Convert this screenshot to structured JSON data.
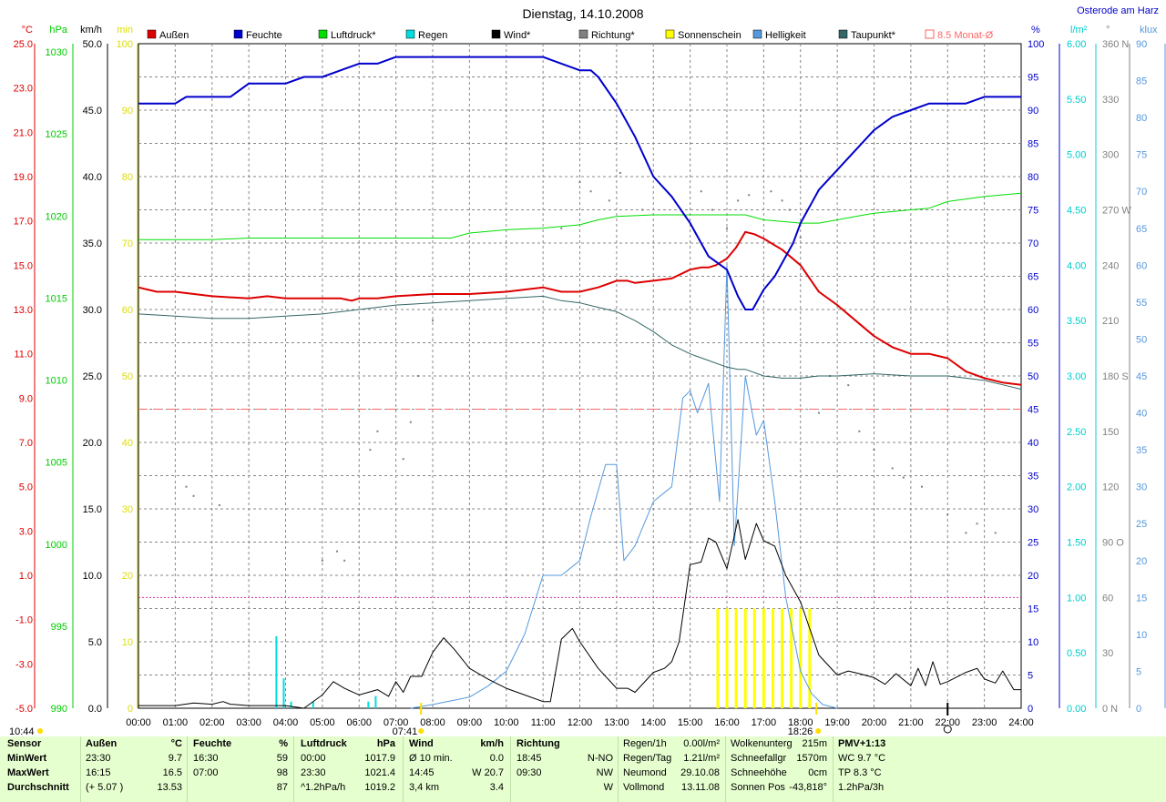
{
  "title": "Dienstag, 14.10.2008",
  "location": "Osterode am Harz",
  "legend": [
    {
      "label": "Außen",
      "color": "#dd0000",
      "style": "filled"
    },
    {
      "label": "Feuchte",
      "color": "#0000cc",
      "style": "filled"
    },
    {
      "label": "Luftdruck*",
      "color": "#00dd00",
      "style": "filled"
    },
    {
      "label": "Regen",
      "color": "#00dddd",
      "style": "filled"
    },
    {
      "label": "Wind*",
      "color": "#000000",
      "style": "filled"
    },
    {
      "label": "Richtung*",
      "color": "#808080",
      "style": "filled"
    },
    {
      "label": "Sonnenschein",
      "color": "#ffff00",
      "style": "filled"
    },
    {
      "label": "Helligkeit",
      "color": "#5599dd",
      "style": "filled"
    },
    {
      "label": "Taupunkt*",
      "color": "#336666",
      "style": "filled"
    },
    {
      "label": "8.5 Monat-Ø",
      "color": "#ff6666",
      "style": "outline"
    }
  ],
  "left_axes": [
    {
      "unit": "°C",
      "color": "#dd0000",
      "ticks": [
        "25.0",
        "23.0",
        "21.0",
        "19.0",
        "17.0",
        "15.0",
        "13.0",
        "11.0",
        "9.0",
        "7.0",
        "5.0",
        "3.0",
        "1.0",
        "-1.0",
        "-3.0",
        "-5.0"
      ]
    },
    {
      "unit": "hPa",
      "color": "#00cc00",
      "ticks": [
        "1030",
        "1025",
        "1020",
        "1015",
        "1010",
        "1005",
        "1000",
        "995",
        "990"
      ],
      "values": [
        1030,
        1025,
        1020,
        1015,
        1010,
        1005,
        1000,
        995,
        990
      ]
    },
    {
      "unit": "km/h",
      "color": "#000000",
      "ticks": [
        "50.0",
        "45.0",
        "40.0",
        "35.0",
        "30.0",
        "25.0",
        "20.0",
        "15.0",
        "10.0",
        "5.0",
        "0.0"
      ]
    },
    {
      "unit": "min",
      "color": "#dddd00",
      "ticks": [
        "100",
        "90",
        "80",
        "70",
        "60",
        "50",
        "40",
        "30",
        "20",
        "10",
        "0"
      ]
    }
  ],
  "right_axes": [
    {
      "unit": "%",
      "color": "#0000cc",
      "ticks": [
        "100",
        "95",
        "90",
        "85",
        "80",
        "75",
        "70",
        "65",
        "60",
        "55",
        "50",
        "45",
        "40",
        "35",
        "30",
        "25",
        "20",
        "15",
        "10",
        "5",
        "0"
      ]
    },
    {
      "unit": "l/m²",
      "color": "#00cccc",
      "ticks": [
        "6.00",
        "5.50",
        "5.00",
        "4.50",
        "4.00",
        "3.50",
        "3.00",
        "2.50",
        "2.00",
        "1.50",
        "1.00",
        "0.50",
        "0.00"
      ]
    },
    {
      "unit": "°",
      "color": "#808080",
      "ticks": [
        "360 N",
        "330",
        "300",
        "270 W",
        "240",
        "210",
        "180 S",
        "150",
        "120",
        "90 O",
        "60",
        "30",
        "0   N"
      ]
    },
    {
      "unit": "klux",
      "color": "#5599dd",
      "ticks": [
        "90",
        "85",
        "80",
        "75",
        "70",
        "65",
        "60",
        "55",
        "50",
        "45",
        "40",
        "35",
        "30",
        "25",
        "20",
        "15",
        "10",
        "5",
        "0"
      ]
    }
  ],
  "x_ticks": [
    "00:00",
    "01:00",
    "02:00",
    "03:00",
    "04:00",
    "05:00",
    "06:00",
    "07:00",
    "08:00",
    "09:00",
    "10:00",
    "11:00",
    "12:00",
    "13:00",
    "14:00",
    "15:00",
    "16:00",
    "17:00",
    "18:00",
    "19:00",
    "20:00",
    "21:00",
    "22:00",
    "23:00",
    "24:00"
  ],
  "markers": {
    "moonrise": "10:44",
    "sunrise": "07:41",
    "sunset": "18:26"
  },
  "chart_data": {
    "type": "line",
    "title": "Dienstag, 14.10.2008",
    "x_unit": "hour of day",
    "xlim": [
      0,
      24
    ],
    "monthly_avg_temp": 8.5,
    "reference_line_wind_kmh": 8.33,
    "series": [
      {
        "name": "Außen",
        "unit": "°C",
        "color": "#dd0000",
        "x": [
          0,
          0.25,
          0.5,
          1,
          2,
          3,
          3.5,
          4,
          5,
          5.5,
          5.8,
          6,
          6.5,
          7,
          8,
          9,
          10,
          11,
          11.5,
          12,
          12.5,
          13,
          13.3,
          13.5,
          14,
          14.5,
          15,
          15.3,
          15.5,
          15.7,
          16,
          16.25,
          16.5,
          16.75,
          17,
          17.5,
          18,
          18.5,
          19,
          19.5,
          20,
          20.5,
          21,
          21.5,
          22,
          22.5,
          23,
          23.5,
          24
        ],
        "values": [
          14.0,
          13.9,
          13.8,
          13.8,
          13.6,
          13.5,
          13.6,
          13.5,
          13.5,
          13.5,
          13.4,
          13.5,
          13.5,
          13.6,
          13.7,
          13.7,
          13.8,
          14.0,
          13.8,
          13.8,
          14.0,
          14.3,
          14.3,
          14.2,
          14.3,
          14.4,
          14.8,
          14.9,
          14.9,
          15.0,
          15.3,
          15.8,
          16.5,
          16.4,
          16.2,
          15.7,
          15.0,
          13.8,
          13.2,
          12.5,
          11.8,
          11.3,
          11.0,
          11.0,
          10.8,
          10.2,
          9.9,
          9.7,
          9.6
        ]
      },
      {
        "name": "Feuchte",
        "unit": "%",
        "color": "#0000cc",
        "x": [
          0,
          1,
          1.3,
          2,
          2.5,
          3,
          4,
          4.5,
          5,
          5.5,
          6,
          6.5,
          7,
          7.5,
          8,
          9,
          10,
          11,
          11.5,
          12,
          12.3,
          12.5,
          13,
          13.5,
          14,
          14.5,
          15,
          15.3,
          15.5,
          16,
          16.3,
          16.5,
          16.7,
          17,
          17.3,
          17.5,
          17.8,
          18,
          18.3,
          18.5,
          19,
          19.5,
          20,
          20.5,
          21,
          21.5,
          22,
          22.5,
          23,
          24
        ],
        "values": [
          91,
          91,
          92,
          92,
          92,
          94,
          94,
          95,
          95,
          96,
          97,
          97,
          98,
          98,
          98,
          98,
          98,
          98,
          97,
          96,
          96,
          95,
          91,
          86,
          80,
          77,
          73,
          70,
          68,
          66,
          62,
          60,
          60,
          63,
          65,
          67,
          70,
          73,
          76,
          78,
          81,
          84,
          87,
          89,
          90,
          91,
          91,
          91,
          92,
          92
        ]
      },
      {
        "name": "Luftdruck",
        "unit": "hPa",
        "color": "#00dd00",
        "x": [
          0,
          1,
          2,
          3,
          4,
          5,
          6,
          7,
          8,
          8.5,
          9,
          10,
          11,
          11.5,
          12,
          12.5,
          13,
          14,
          15,
          16,
          16.5,
          17,
          17.5,
          18,
          18.5,
          19,
          19.5,
          20,
          21,
          21.5,
          22,
          23,
          24
        ],
        "values": [
          1018.2,
          1018.2,
          1018.2,
          1018.3,
          1018.3,
          1018.3,
          1018.3,
          1018.3,
          1018.3,
          1018.3,
          1018.6,
          1018.8,
          1018.9,
          1019.0,
          1019.1,
          1019.4,
          1019.6,
          1019.7,
          1019.7,
          1019.7,
          1019.7,
          1019.4,
          1019.3,
          1019.2,
          1019.2,
          1019.4,
          1019.6,
          1019.8,
          1020.0,
          1020.1,
          1020.5,
          1020.8,
          1021.0
        ]
      },
      {
        "name": "Taupunkt",
        "unit": "°C",
        "color": "#336666",
        "x": [
          0,
          1,
          2,
          3,
          4,
          5,
          6,
          7,
          8,
          9,
          10,
          11,
          11.5,
          12,
          12.5,
          13,
          13.5,
          14,
          14.5,
          15,
          15.5,
          16,
          16.3,
          16.5,
          17,
          17.5,
          18,
          18.5,
          19,
          20,
          21,
          21.5,
          22,
          22.5,
          23,
          23.5,
          24
        ],
        "values": [
          12.8,
          12.7,
          12.6,
          12.6,
          12.7,
          12.8,
          13.0,
          13.2,
          13.3,
          13.4,
          13.5,
          13.6,
          13.4,
          13.3,
          13.1,
          12.9,
          12.5,
          12.0,
          11.4,
          11.0,
          10.7,
          10.4,
          10.3,
          10.3,
          10.0,
          9.9,
          9.9,
          10.0,
          10.0,
          10.1,
          10.0,
          10.0,
          10.0,
          9.9,
          9.8,
          9.6,
          9.4
        ]
      },
      {
        "name": "Wind",
        "unit": "km/h",
        "color": "#000000",
        "x": [
          0,
          1,
          1.5,
          2,
          2.3,
          2.5,
          3,
          4,
          4.5,
          5,
          5.3,
          5.6,
          6,
          6.5,
          6.8,
          7,
          7.2,
          7.4,
          7.7,
          8,
          8.3,
          8.6,
          9,
          9.5,
          10,
          10.5,
          11,
          11.2,
          11.5,
          11.8,
          12,
          12.5,
          13,
          13.3,
          13.5,
          14,
          14.3,
          14.5,
          14.7,
          15,
          15.3,
          15.5,
          15.7,
          16,
          16.3,
          16.5,
          16.8,
          17,
          17.3,
          17.6,
          18,
          18.5,
          19,
          19.3,
          19.6,
          20,
          20.3,
          20.6,
          21,
          21.2,
          21.4,
          21.6,
          21.8,
          22,
          22.5,
          22.8,
          23,
          23.3,
          23.5,
          23.8,
          24
        ],
        "values": [
          0.2,
          0.2,
          0.4,
          0.3,
          0.5,
          0.3,
          0.2,
          0.2,
          0,
          1.0,
          2.0,
          1.5,
          1.0,
          1.4,
          0.9,
          2.0,
          1.2,
          2.4,
          2.4,
          4.2,
          5.3,
          4.4,
          3.0,
          2.2,
          1.5,
          1.0,
          0.5,
          0.5,
          5.2,
          6.0,
          5.0,
          3.0,
          1.5,
          1.5,
          1.2,
          2.7,
          3.0,
          3.5,
          5.0,
          10.8,
          11.0,
          12.8,
          12.5,
          10.5,
          14.2,
          11.2,
          13.9,
          12.6,
          12.2,
          10.0,
          8.0,
          4.0,
          2.5,
          2.8,
          2.6,
          2.3,
          1.8,
          2.6,
          1.7,
          3.0,
          1.7,
          3.5,
          1.8,
          2.0,
          2.7,
          3.0,
          2.2,
          1.9,
          2.8,
          1.4,
          1.4
        ]
      },
      {
        "name": "Regen",
        "unit": "l/m²",
        "type": "bar",
        "color": "#00dddd",
        "x": [
          3.75,
          3.95,
          4.15,
          4.75,
          6.25,
          6.45
        ],
        "values": [
          0.65,
          0.27,
          0.06,
          0.06,
          0.06,
          0.11
        ]
      },
      {
        "name": "Helligkeit",
        "unit": "klux",
        "color": "#5599dd",
        "x": [
          7.4,
          8,
          8.5,
          9,
          9.5,
          10,
          10.5,
          11,
          11.5,
          12,
          12.3,
          12.7,
          13,
          13.2,
          13.5,
          14,
          14.5,
          14.8,
          15,
          15.2,
          15.5,
          15.8,
          16,
          16.2,
          16.5,
          16.8,
          17,
          17.3,
          17.6,
          18,
          18.3,
          18.6,
          19
        ],
        "values": [
          0,
          0.5,
          1,
          1.5,
          3,
          5,
          10,
          18,
          18,
          20,
          26,
          33,
          33,
          20,
          22,
          28,
          30,
          42,
          43,
          40,
          44,
          28,
          60,
          22,
          45,
          37,
          39,
          28,
          15,
          5,
          2,
          0.5,
          0
        ]
      },
      {
        "name": "Richtung",
        "unit": "°",
        "type": "scatter",
        "color": "#808080",
        "x": [
          1.3,
          1.5,
          2.2,
          5.0,
          5.4,
          5.6,
          6.3,
          6.5,
          7.2,
          7.4,
          7.6,
          8.0,
          11.5,
          12.0,
          12.3,
          12.8,
          13.1,
          13.7,
          15.3,
          15.6,
          16.0,
          16.3,
          16.6,
          17.2,
          17.5,
          17.7,
          18.0,
          18.5,
          18.8,
          19.3,
          19.6,
          20.0,
          20.5,
          20.8,
          21.3,
          22.0,
          22.5,
          22.8,
          23.3
        ],
        "values": [
          120,
          115,
          110,
          80,
          85,
          80,
          140,
          150,
          135,
          155,
          180,
          210,
          260,
          285,
          280,
          275,
          290,
          270,
          280,
          270,
          260,
          275,
          278,
          280,
          275,
          270,
          255,
          160,
          180,
          175,
          150,
          140,
          130,
          125,
          120,
          105,
          95,
          100,
          95
        ]
      },
      {
        "name": "Sonnenschein",
        "unit": "min",
        "type": "bar",
        "color": "#ffff00",
        "x": [
          15.75,
          16.0,
          16.25,
          16.5,
          16.75,
          17.0,
          17.25,
          17.5,
          17.75,
          18.0,
          18.25
        ],
        "values": [
          15,
          15,
          15,
          15,
          15,
          15,
          15,
          15,
          15,
          15,
          15
        ]
      }
    ]
  },
  "footer": {
    "sensor": {
      "header": [
        "Sensor",
        "Außen",
        "°C",
        "Feuchte",
        "%",
        "Luftdruck",
        "hPa",
        "Wind",
        "km/h",
        "Richtung"
      ],
      "rows": [
        {
          "label": "MinWert",
          "aussen_time": "23:30",
          "aussen_val": "9.7",
          "feuchte_time": "16:30",
          "feuchte_val": "59",
          "druck_time": "00:00",
          "druck_val": "1017.9",
          "wind_time": "Ø 10 min.",
          "wind_val": "0.0",
          "richt_time": "18:45",
          "richt_val": "N-NO"
        },
        {
          "label": "MaxWert",
          "aussen_time": "16:15",
          "aussen_val": "16.5",
          "feuchte_time": "07:00",
          "feuchte_val": "98",
          "druck_time": "23:30",
          "druck_val": "1021.4",
          "wind_time": "14:45",
          "wind_val": "W 20.7",
          "richt_time": "09:30",
          "richt_val": "NW"
        },
        {
          "label": "Durchschnitt",
          "aussen_time": "(+ 5.07 )",
          "aussen_val": "13.53",
          "feuchte_time": "",
          "feuchte_val": "87",
          "druck_time": "^1.2hPa/h",
          "druck_val": "1019.2",
          "wind_time": "3,4 km",
          "wind_val": "3.4",
          "richt_time": "",
          "richt_val": "W"
        }
      ]
    },
    "astro": [
      {
        "label": "Regen/1h",
        "value": "0.00l/m²"
      },
      {
        "label": "Regen/Tag",
        "value": "1.21l/m²"
      },
      {
        "label": "Neumond",
        "value": "29.10.08"
      },
      {
        "label": "Vollmond",
        "value": "13.11.08"
      }
    ],
    "cloud": [
      {
        "label": "Wolkenunterg",
        "value": "215m"
      },
      {
        "label": "Schneefallgr",
        "value": "1570m"
      },
      {
        "label": "Schneehöhe",
        "value": "0cm"
      },
      {
        "label": "Sonnen Pos",
        "value": "-43,818°"
      }
    ],
    "pmv": {
      "title": "PMV+1:13",
      "lines": [
        "WC 9.7 °C",
        "TP 8.3 °C",
        "1.2hPa/3h"
      ]
    }
  }
}
